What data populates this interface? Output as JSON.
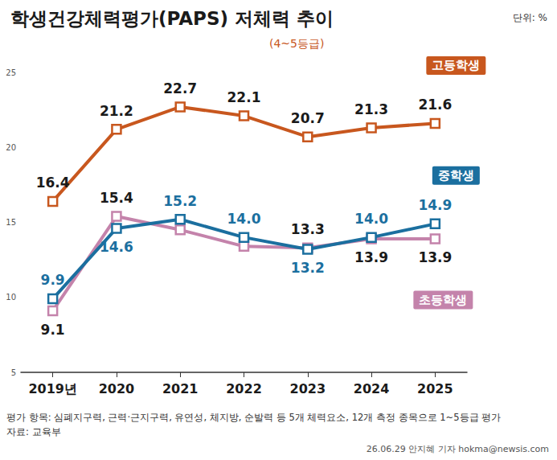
{
  "chart_data": {
    "type": "line",
    "title": "학생건강체력평가(PAPS) 저체력 추이",
    "subtitle": "(4~5등급)",
    "annotations": [
      "단위: %",
      "평가 항목: 심폐지구력, 근력·근지구력, 유연성, 체지방, 순발력 등 5개 체력요소, 12개 측정 종목으로 1~5등급 평가",
      "자료: 교육부",
      "26.06.29 안지혜 기자 hokma@newsis.com"
    ],
    "categories": [
      "2019년",
      "2020",
      "2021",
      "2022",
      "2023",
      "2024",
      "2025"
    ],
    "series": [
      {
        "name": "고등학생",
        "color": "#c8571e",
        "values": [
          16.4,
          21.2,
          22.7,
          22.1,
          20.7,
          21.3,
          21.6
        ],
        "value_labels": [
          "16.4",
          "21.2",
          "22.7",
          "22.1",
          "20.7",
          "21.3",
          "21.6"
        ]
      },
      {
        "name": "중학생",
        "color": "#1b6f9f",
        "values": [
          9.9,
          14.6,
          15.2,
          14.0,
          13.2,
          14.0,
          14.9
        ],
        "value_labels": [
          "9.9",
          "14.6",
          "15.2",
          "14.0",
          "13.2",
          "14.0",
          "14.9"
        ]
      },
      {
        "name": "초등학생",
        "color": "#c483ab",
        "values": [
          9.1,
          15.4,
          14.5,
          13.4,
          13.3,
          13.9,
          13.9
        ],
        "value_labels": [
          "9.1",
          "15.4",
          null,
          null,
          "13.3",
          "13.9",
          "13.9"
        ]
      }
    ],
    "ylim": [
      5,
      25
    ],
    "yticks": [
      5,
      10,
      15,
      20,
      25
    ],
    "grid": false,
    "data_labels": true,
    "marker": "square",
    "line_style": "solid"
  }
}
